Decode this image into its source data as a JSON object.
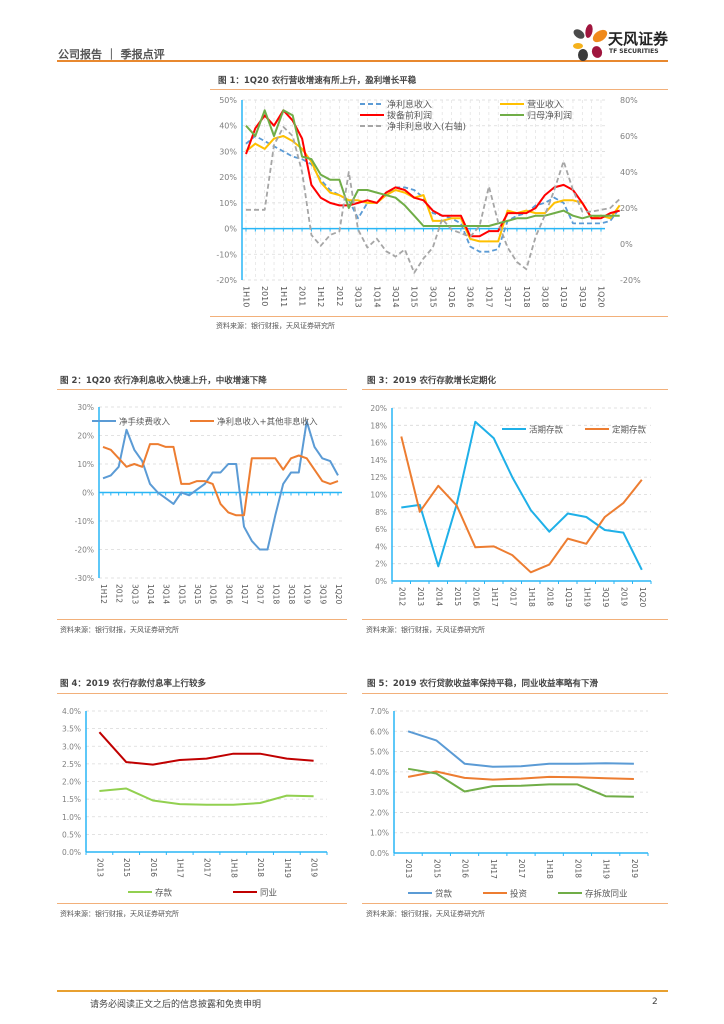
{
  "header": {
    "section": "公司报告 ｜ 季报点评",
    "logo_cn": "天风证券",
    "logo_en": "TF SECURITIES"
  },
  "footer": {
    "disclaimer": "请务必阅读正文之后的信息披露和免责申明",
    "page": "2"
  },
  "source_text": "资料来源：银行财报，天风证券研究所",
  "colors": {
    "accent": "#e8882f",
    "axis": "#29b6f6"
  },
  "chart_data": [
    {
      "id": "fig1",
      "type": "line",
      "title": "图 1：1Q20 农行营收增速有所上升，盈利增长平稳",
      "categories": [
        "1H10",
        "",
        "2010",
        "",
        "1H11",
        "",
        "2011",
        "",
        "1H12",
        "",
        "2012",
        "",
        "3Q13",
        "",
        "1Q14",
        "",
        "3Q14",
        "",
        "1Q15",
        "",
        "3Q15",
        "",
        "1Q16",
        "",
        "3Q16",
        "",
        "1Q17",
        "",
        "3Q17",
        "",
        "1Q18",
        "",
        "3Q18",
        "",
        "1Q19",
        "",
        "3Q19",
        "",
        "1Q20"
      ],
      "tick_labels": [
        "1H10",
        "2010",
        "1H11",
        "2011",
        "1H12",
        "2012",
        "3Q13",
        "1Q14",
        "3Q14",
        "1Q15",
        "3Q15",
        "1Q16",
        "3Q16",
        "1Q17",
        "3Q17",
        "1Q18",
        "3Q18",
        "1Q19",
        "3Q19",
        "1Q20"
      ],
      "ylim": [
        -20,
        50
      ],
      "yticks": [
        "-20%",
        "-10%",
        "0%",
        "10%",
        "20%",
        "30%",
        "40%",
        "50%"
      ],
      "y2lim": [
        -20,
        80
      ],
      "y2ticks": [
        "-20%",
        "0%",
        "20%",
        "40%",
        "60%",
        "80%"
      ],
      "legend": "top-right",
      "series": [
        {
          "name": "净利息收入",
          "color": "#5b9bd5",
          "dash": true,
          "axis": "left",
          "values": [
            33,
            36,
            34,
            32,
            30,
            28,
            27,
            25,
            19,
            15,
            13,
            11,
            4,
            10,
            10,
            13,
            16,
            16,
            15,
            12,
            6,
            5,
            4,
            2,
            -7,
            -9,
            -9,
            -8,
            3,
            5,
            6,
            9,
            10,
            12,
            10,
            2,
            2,
            2,
            2,
            3,
            8
          ]
        },
        {
          "name": "营业收入",
          "color": "#ffc000",
          "dash": false,
          "axis": "left",
          "values": [
            30,
            33,
            31,
            35,
            36,
            34,
            31,
            26,
            18,
            14,
            13,
            11,
            11,
            10,
            10,
            13,
            15,
            14,
            12,
            13,
            3,
            3,
            4,
            4,
            -4,
            -5,
            -5,
            -5,
            7,
            6,
            7,
            6,
            6,
            10,
            11,
            11,
            10,
            4,
            5,
            4,
            9
          ]
        },
        {
          "name": "拨备前利润",
          "color": "#ff0000",
          "dash": false,
          "axis": "left",
          "values": [
            29,
            39,
            44,
            40,
            46,
            42,
            35,
            17,
            12,
            10,
            9,
            9,
            10,
            11,
            10,
            14,
            16,
            15,
            12,
            11,
            7,
            5,
            5,
            5,
            -3,
            -3,
            -1,
            -1,
            6,
            6,
            6,
            8,
            13,
            16,
            17,
            15,
            10,
            4,
            4,
            6,
            7
          ]
        },
        {
          "name": "归母净利润",
          "color": "#70ad47",
          "dash": false,
          "axis": "left",
          "values": [
            40,
            36,
            46,
            36,
            46,
            44,
            28,
            27,
            21,
            19,
            19,
            8,
            15,
            15,
            14,
            13,
            12,
            9,
            5,
            1,
            1,
            1,
            1,
            1,
            1,
            1,
            1,
            2,
            3,
            4,
            4,
            5,
            5,
            6,
            7,
            5,
            4,
            5,
            5,
            5,
            5
          ]
        },
        {
          "name": "净非利息收入(右轴)",
          "color": "#a6a6a6",
          "dash": true,
          "axis": "right",
          "values": [
            19,
            19,
            19,
            55,
            65,
            60,
            40,
            5,
            -1,
            5,
            7,
            40,
            8,
            -2,
            3,
            -4,
            -7,
            -3,
            -16,
            -8,
            -2,
            14,
            8,
            6,
            4,
            10,
            32,
            12,
            -2,
            -10,
            -14,
            4,
            16,
            30,
            46,
            30,
            18,
            18,
            19,
            20,
            25
          ]
        }
      ]
    },
    {
      "id": "fig2",
      "type": "line",
      "title": "图 2：1Q20 农行净利息收入快速上升，中收增速下降",
      "categories": [
        "1H12",
        "",
        "2012",
        "",
        "3Q13",
        "",
        "1Q14",
        "",
        "3Q14",
        "",
        "1Q15",
        "",
        "3Q15",
        "",
        "1Q16",
        "",
        "3Q16",
        "",
        "1Q17",
        "",
        "3Q17",
        "",
        "1Q18",
        "",
        "3Q18",
        "",
        "1Q19",
        "",
        "3Q19",
        "",
        "1Q20"
      ],
      "tick_labels": [
        "1H12",
        "2012",
        "3Q13",
        "1Q14",
        "3Q14",
        "1Q15",
        "3Q15",
        "1Q16",
        "3Q16",
        "1Q17",
        "3Q17",
        "1Q18",
        "3Q18",
        "1Q19",
        "3Q19",
        "1Q20"
      ],
      "ylim": [
        -30,
        30
      ],
      "yticks": [
        "-30%",
        "-20%",
        "-10%",
        "0%",
        "10%",
        "20%",
        "30%"
      ],
      "legend": "top",
      "series": [
        {
          "name": "净手续费收入",
          "color": "#5b9bd5",
          "values": [
            5,
            6,
            9,
            22,
            15,
            11,
            3,
            0,
            -2,
            -4,
            0,
            -1,
            1,
            3,
            7,
            7,
            10,
            10,
            -12,
            -17,
            -20,
            -20,
            -8,
            3,
            7,
            7,
            25,
            16,
            12,
            11,
            6
          ]
        },
        {
          "name": "净利息收入+其他非息收入",
          "color": "#ed7d31",
          "values": [
            16,
            15,
            12,
            9,
            10,
            9,
            17,
            17,
            16,
            16,
            3,
            3,
            4,
            4,
            3,
            -4,
            -7,
            -8,
            -8,
            12,
            12,
            12,
            12,
            8,
            12,
            13,
            12,
            8,
            4,
            3,
            4
          ]
        }
      ]
    },
    {
      "id": "fig3",
      "type": "line",
      "title": "图 3：2019 农行存款增长定期化",
      "categories": [
        "2012",
        "2013",
        "2014",
        "2015",
        "2016",
        "1H17",
        "2017",
        "1H18",
        "2018",
        "1Q19",
        "1H19",
        "3Q19",
        "2019",
        "1Q20"
      ],
      "ylim": [
        0,
        20
      ],
      "yticks": [
        "0%",
        "2%",
        "4%",
        "6%",
        "8%",
        "10%",
        "12%",
        "14%",
        "16%",
        "18%",
        "20%"
      ],
      "legend": "top-right",
      "series": [
        {
          "name": "活期存款",
          "color": "#1fb0e8",
          "values": [
            8.5,
            8.8,
            1.7,
            8.9,
            18.4,
            16.5,
            12.0,
            8.2,
            5.7,
            7.8,
            7.4,
            5.9,
            5.6,
            1.3
          ]
        },
        {
          "name": "定期存款",
          "color": "#ed7d31",
          "values": [
            16.7,
            8.0,
            11.0,
            8.7,
            3.9,
            4.0,
            3.0,
            1.0,
            1.9,
            4.9,
            4.3,
            7.4,
            9.0,
            11.7
          ]
        }
      ]
    },
    {
      "id": "fig4",
      "type": "line",
      "title": "图 4：2019 农行存款付息率上行较多",
      "categories": [
        "2013",
        "2015",
        "2016",
        "1H17",
        "2017",
        "1H18",
        "2018",
        "1H19",
        "2019"
      ],
      "ylim": [
        0,
        4
      ],
      "yticks": [
        "0.0%",
        "0.5%",
        "1.0%",
        "1.5%",
        "2.0%",
        "2.5%",
        "3.0%",
        "3.5%",
        "4.0%"
      ],
      "legend": "bottom",
      "series": [
        {
          "name": "存款",
          "color": "#92d050",
          "values": [
            1.73,
            1.8,
            1.46,
            1.36,
            1.34,
            1.34,
            1.39,
            1.6,
            1.58
          ]
        },
        {
          "name": "同业",
          "color": "#c00000",
          "values": [
            3.4,
            2.55,
            2.48,
            2.61,
            2.65,
            2.79,
            2.79,
            2.65,
            2.59
          ]
        }
      ]
    },
    {
      "id": "fig5",
      "type": "line",
      "title": "图 5：2019 农行贷款收益率保持平稳，同业收益率略有下滑",
      "categories": [
        "2013",
        "2015",
        "2016",
        "1H17",
        "2017",
        "1H18",
        "2018",
        "1H19",
        "2019"
      ],
      "ylim": [
        0,
        7
      ],
      "yticks": [
        "0.0%",
        "1.0%",
        "2.0%",
        "3.0%",
        "4.0%",
        "5.0%",
        "6.0%",
        "7.0%"
      ],
      "legend": "bottom",
      "series": [
        {
          "name": "贷款",
          "color": "#5b9bd5",
          "values": [
            6.0,
            5.55,
            4.4,
            4.25,
            4.28,
            4.4,
            4.4,
            4.42,
            4.4
          ]
        },
        {
          "name": "投资",
          "color": "#ed7d31",
          "values": [
            3.75,
            4.02,
            3.7,
            3.62,
            3.67,
            3.75,
            3.73,
            3.68,
            3.65
          ]
        },
        {
          "name": "存拆放同业",
          "color": "#70ad47",
          "values": [
            4.15,
            3.92,
            3.03,
            3.3,
            3.32,
            3.38,
            3.38,
            2.8,
            2.77
          ]
        }
      ]
    }
  ]
}
